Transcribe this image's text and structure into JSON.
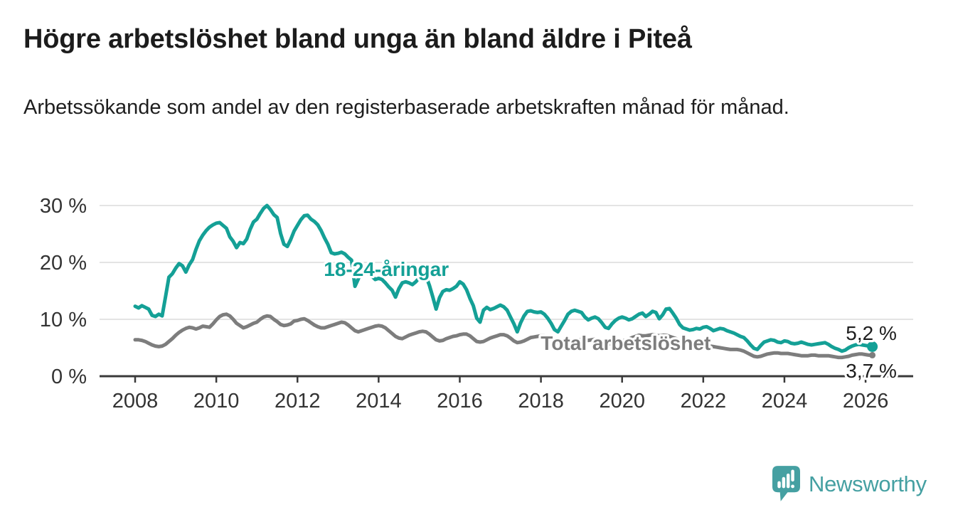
{
  "page": {
    "title": "Högre arbetslöshet bland unga än bland äldre i Piteå",
    "subtitle": "Arbetssökande som andel av den registerbaserade arbetskraften månad för månad."
  },
  "branding": {
    "wordmark": "Newsworthy",
    "logo_icon": "newsworthy-speech-bubble-bar-chart-icon",
    "color": "#45a0a2"
  },
  "colors": {
    "youth_line": "#14a096",
    "total_line": "#7d7d7d",
    "axis": "#3a3a3a",
    "grid": "#dcdcdc",
    "tick_text": "#333333",
    "value_text": "#1d1d1d"
  },
  "chart_data": {
    "type": "line",
    "unit": "%",
    "grid": true,
    "x_axis": {
      "min": 2008,
      "ticks": [
        2008,
        2010,
        2012,
        2014,
        2016,
        2018,
        2020,
        2022,
        2024,
        2026
      ]
    },
    "y_axis": {
      "max": 30,
      "ticks": [
        {
          "value": 0,
          "label": "0 %"
        },
        {
          "value": 10,
          "label": "10 %"
        },
        {
          "value": 20,
          "label": "20 %"
        },
        {
          "value": 30,
          "label": "30 %"
        }
      ]
    },
    "series": [
      {
        "id": "total",
        "name": "Total arbetslöshet",
        "color": "#7d7d7d",
        "start_year": 2008,
        "interval": "monthly",
        "end_dot_radius": 4.5,
        "values": [
          6.4,
          6.4,
          6.3,
          6.1,
          5.8,
          5.5,
          5.3,
          5.2,
          5.3,
          5.6,
          6.1,
          6.6,
          7.2,
          7.7,
          8.1,
          8.4,
          8.6,
          8.5,
          8.3,
          8.5,
          8.8,
          8.7,
          8.6,
          9.2,
          9.9,
          10.5,
          10.8,
          10.9,
          10.6,
          10.0,
          9.3,
          8.9,
          8.5,
          8.7,
          9.0,
          9.3,
          9.5,
          10.0,
          10.4,
          10.6,
          10.5,
          10.0,
          9.6,
          9.1,
          8.9,
          9.0,
          9.2,
          9.7,
          9.8,
          10.0,
          10.1,
          9.8,
          9.4,
          9.0,
          8.7,
          8.5,
          8.5,
          8.7,
          8.9,
          9.1,
          9.3,
          9.5,
          9.4,
          9.0,
          8.5,
          8.0,
          7.8,
          8.0,
          8.2,
          8.4,
          8.6,
          8.8,
          8.9,
          8.8,
          8.5,
          8.0,
          7.5,
          7.0,
          6.7,
          6.6,
          6.9,
          7.2,
          7.4,
          7.6,
          7.8,
          7.9,
          7.8,
          7.4,
          6.9,
          6.4,
          6.2,
          6.3,
          6.6,
          6.8,
          7.0,
          7.1,
          7.3,
          7.4,
          7.4,
          7.1,
          6.6,
          6.1,
          6.0,
          6.1,
          6.4,
          6.7,
          6.9,
          7.1,
          7.3,
          7.3,
          7.1,
          6.7,
          6.2,
          5.9,
          6.0,
          6.2,
          6.5,
          6.8,
          6.9,
          7.0,
          7.1,
          7.1,
          6.9,
          6.5,
          6.1,
          5.9,
          5.8,
          5.9,
          6.1,
          6.2,
          6.3,
          6.4,
          6.4,
          6.4,
          6.3,
          6.4,
          6.5,
          6.3,
          6.0,
          5.7,
          5.6,
          5.8,
          6.0,
          6.1,
          6.2,
          6.3,
          6.5,
          6.8,
          7.0,
          7.2,
          7.1,
          7.1,
          7.2,
          7.3,
          7.2,
          7.1,
          7.2,
          7.2,
          7.0,
          6.8,
          6.6,
          6.3,
          6.1,
          5.9,
          5.7,
          5.6,
          5.5,
          5.5,
          5.4,
          5.4,
          5.3,
          5.2,
          5.1,
          5.0,
          4.9,
          4.8,
          4.7,
          4.7,
          4.7,
          4.6,
          4.4,
          4.1,
          3.8,
          3.5,
          3.4,
          3.5,
          3.7,
          3.9,
          4.0,
          4.1,
          4.1,
          4.0,
          4.0,
          4.0,
          3.9,
          3.8,
          3.7,
          3.6,
          3.6,
          3.6,
          3.7,
          3.7,
          3.6,
          3.6,
          3.6,
          3.6,
          3.5,
          3.4,
          3.3,
          3.3,
          3.4,
          3.5,
          3.7,
          3.8,
          3.9,
          3.9,
          3.8,
          3.7,
          3.7
        ]
      },
      {
        "id": "youth",
        "name": "18-24-åringar",
        "color": "#14a096",
        "start_year": 2008,
        "interval": "monthly",
        "end_dot_radius": 7.5,
        "values": [
          12.3,
          12.0,
          12.4,
          12.1,
          11.8,
          10.7,
          10.5,
          10.9,
          10.6,
          14.0,
          17.4,
          18.0,
          19.0,
          19.8,
          19.4,
          18.3,
          19.6,
          20.5,
          22.3,
          23.8,
          24.8,
          25.6,
          26.2,
          26.6,
          26.9,
          27.0,
          26.5,
          26.0,
          24.5,
          23.7,
          22.6,
          23.5,
          23.3,
          24.1,
          25.8,
          27.1,
          27.6,
          28.6,
          29.5,
          30.0,
          29.3,
          28.4,
          27.9,
          25.1,
          23.2,
          22.8,
          24.0,
          25.5,
          26.5,
          27.5,
          28.2,
          28.3,
          27.6,
          27.2,
          26.6,
          25.6,
          24.3,
          23.2,
          21.7,
          21.5,
          21.6,
          21.8,
          21.5,
          20.9,
          20.4,
          15.8,
          17.1,
          18.6,
          18.3,
          18.0,
          17.6,
          17.0,
          17.2,
          17.0,
          16.4,
          15.7,
          15.1,
          13.9,
          15.4,
          16.4,
          16.6,
          16.4,
          16.1,
          16.6,
          17.3,
          17.5,
          17.6,
          16.0,
          14.0,
          11.8,
          13.8,
          14.9,
          15.2,
          15.1,
          15.4,
          15.8,
          16.6,
          16.2,
          15.2,
          13.7,
          12.4,
          10.2,
          9.5,
          11.6,
          12.1,
          11.7,
          11.9,
          12.2,
          12.5,
          12.2,
          11.6,
          10.4,
          9.2,
          7.8,
          9.4,
          10.6,
          11.4,
          11.5,
          11.3,
          11.2,
          11.3,
          10.9,
          10.2,
          9.3,
          8.2,
          7.8,
          8.8,
          9.8,
          10.9,
          11.4,
          11.6,
          11.4,
          11.2,
          10.4,
          9.9,
          10.2,
          10.4,
          10.1,
          9.4,
          8.6,
          8.4,
          9.2,
          9.8,
          10.2,
          10.4,
          10.2,
          9.9,
          10.1,
          10.5,
          10.9,
          11.1,
          10.5,
          10.9,
          11.4,
          11.2,
          10.1,
          10.8,
          11.8,
          11.9,
          11.1,
          10.2,
          9.1,
          8.5,
          8.3,
          8.1,
          8.2,
          8.4,
          8.3,
          8.6,
          8.7,
          8.4,
          8.0,
          8.2,
          8.4,
          8.3,
          8.0,
          7.8,
          7.6,
          7.3,
          7.0,
          6.8,
          6.2,
          5.5,
          4.9,
          4.7,
          5.4,
          6.0,
          6.2,
          6.4,
          6.3,
          6.0,
          5.9,
          6.2,
          6.1,
          5.8,
          5.7,
          5.8,
          6.0,
          5.8,
          5.6,
          5.5,
          5.6,
          5.7,
          5.8,
          5.9,
          5.6,
          5.2,
          4.9,
          4.7,
          4.4,
          4.6,
          5.0,
          5.3,
          5.5,
          5.6,
          5.5,
          5.4,
          5.3,
          5.2
        ]
      }
    ],
    "annotations": [
      {
        "id": "youth-series-label",
        "text": "18-24-åringar",
        "year": 2014.19,
        "value": 18.9,
        "color": "#14a096",
        "bold": true
      },
      {
        "id": "total-series-label",
        "text": "Total arbetslöshet",
        "year": 2020.09,
        "value": 5.9,
        "color": "#7d7d7d",
        "bold": true
      },
      {
        "id": "youth-end-value",
        "text": "5,2 %",
        "year": 2026.14,
        "value": 7.6,
        "color": "#1d1d1d",
        "bold": false
      },
      {
        "id": "total-end-value",
        "text": "3,7 %",
        "year": 2026.14,
        "value": 1.0,
        "color": "#1d1d1d",
        "bold": false
      }
    ]
  }
}
